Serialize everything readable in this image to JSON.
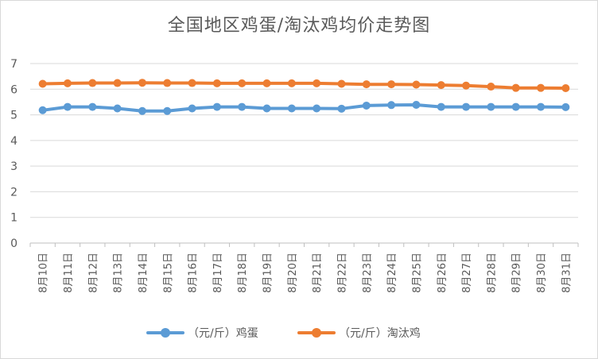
{
  "chart_data": {
    "type": "line",
    "title": "全国地区鸡蛋/淘汰鸡均价走势图",
    "x": [
      "8月10日",
      "8月11日",
      "8月12日",
      "8月13日",
      "8月14日",
      "8月15日",
      "8月16日",
      "8月17日",
      "8月18日",
      "8月19日",
      "8月20日",
      "8月21日",
      "8月22日",
      "8月23日",
      "8月24日",
      "8月25日",
      "8月26日",
      "8月27日",
      "8月28日",
      "8月29日",
      "8月30日",
      "8月31日"
    ],
    "series": [
      {
        "name": "（元/斤）鸡蛋",
        "color": "#5b9bd5",
        "values": [
          5.18,
          5.31,
          5.31,
          5.25,
          5.15,
          5.15,
          5.25,
          5.31,
          5.31,
          5.25,
          5.25,
          5.25,
          5.24,
          5.36,
          5.38,
          5.39,
          5.31,
          5.31,
          5.31,
          5.31,
          5.31,
          5.3
        ]
      },
      {
        "name": "（元/斤）淘汰鸡",
        "color": "#ed7d31",
        "values": [
          6.21,
          6.23,
          6.24,
          6.24,
          6.25,
          6.24,
          6.24,
          6.23,
          6.23,
          6.23,
          6.23,
          6.23,
          6.21,
          6.19,
          6.19,
          6.18,
          6.16,
          6.14,
          6.1,
          6.05,
          6.05,
          6.04
        ]
      }
    ],
    "ylim": [
      0,
      7
    ],
    "yticks": [
      0,
      1,
      2,
      3,
      4,
      5,
      6,
      7
    ],
    "xlabel": "",
    "ylabel": "",
    "grid": true,
    "legend": "bottom"
  }
}
